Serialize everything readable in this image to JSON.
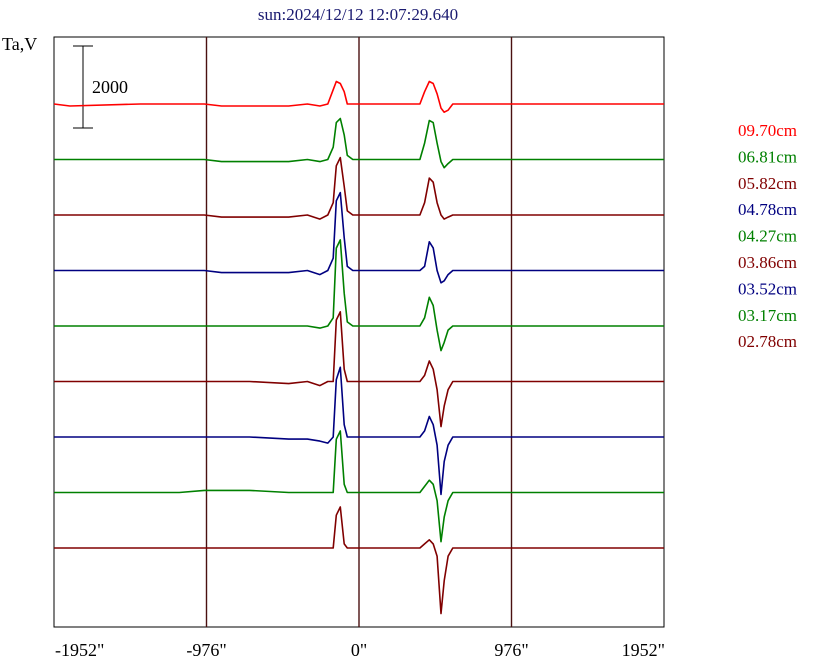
{
  "chart_data": {
    "type": "line",
    "title": "sun:2024/12/12 12:07:29.640",
    "ylabel": "Ta,V",
    "scale_bar_label": "2000",
    "scale_bar_value": 2000,
    "xlim": [
      -1952,
      1952
    ],
    "x_ticks": [
      {
        "value": -1952,
        "label": "-1952\""
      },
      {
        "value": -976,
        "label": "-976\""
      },
      {
        "value": 0,
        "label": "0\""
      },
      {
        "value": 976,
        "label": "976\""
      },
      {
        "value": 1952,
        "label": "1952\""
      }
    ],
    "vertical_guides": [
      -976,
      0,
      976
    ],
    "grid": false,
    "legend_placement": "right",
    "x": [
      -1952,
      -1850,
      -1400,
      -1150,
      -990,
      -880,
      -700,
      -450,
      -330,
      -250,
      -200,
      -165,
      -145,
      -120,
      -95,
      -75,
      -40,
      0,
      150,
      300,
      390,
      420,
      450,
      475,
      500,
      525,
      545,
      570,
      600,
      650,
      700,
      780,
      860,
      990,
      1400,
      1952
    ],
    "series": [
      {
        "name": "09.70cm",
        "color": "#ff0000",
        "offset": 0,
        "values": [
          0,
          -50,
          0,
          0,
          0,
          -50,
          -50,
          -50,
          0,
          -50,
          0,
          350,
          550,
          500,
          300,
          0,
          0,
          0,
          0,
          0,
          0,
          300,
          550,
          500,
          250,
          -100,
          -200,
          -150,
          0,
          0,
          0,
          0,
          0,
          0,
          0,
          0
        ]
      },
      {
        "name": "06.81cm",
        "color": "#008000",
        "offset": 0,
        "values": [
          0,
          0,
          0,
          0,
          0,
          -50,
          -50,
          -50,
          0,
          -50,
          0,
          300,
          900,
          1000,
          600,
          100,
          0,
          0,
          0,
          0,
          0,
          400,
          950,
          900,
          400,
          -50,
          -200,
          -100,
          0,
          0,
          0,
          0,
          0,
          0,
          0,
          0
        ]
      },
      {
        "name": "05.82cm",
        "color": "#800000",
        "offset": 0,
        "values": [
          0,
          0,
          0,
          0,
          0,
          -50,
          -50,
          -50,
          0,
          -100,
          0,
          300,
          1200,
          1400,
          700,
          100,
          0,
          0,
          0,
          0,
          0,
          300,
          900,
          800,
          300,
          0,
          -100,
          -50,
          0,
          0,
          0,
          0,
          0,
          0,
          0,
          0
        ]
      },
      {
        "name": "04.78cm",
        "color": "#000080",
        "offset": 0,
        "values": [
          0,
          0,
          0,
          0,
          0,
          -50,
          -50,
          -50,
          0,
          -100,
          0,
          300,
          1700,
          1900,
          800,
          100,
          0,
          0,
          0,
          0,
          0,
          100,
          700,
          550,
          0,
          -300,
          -250,
          -100,
          0,
          0,
          0,
          0,
          0,
          0,
          0,
          0
        ]
      },
      {
        "name": "04.27cm",
        "color": "#008000",
        "offset": 0,
        "values": [
          0,
          0,
          0,
          0,
          0,
          0,
          0,
          0,
          0,
          -50,
          0,
          200,
          1900,
          2100,
          800,
          100,
          0,
          0,
          0,
          0,
          0,
          200,
          700,
          500,
          -100,
          -600,
          -400,
          -100,
          0,
          0,
          0,
          0,
          0,
          0,
          0,
          0
        ]
      },
      {
        "name": "03.86cm",
        "color": "#800000",
        "offset": 0,
        "values": [
          0,
          0,
          0,
          0,
          0,
          0,
          0,
          -50,
          0,
          -100,
          0,
          0,
          1500,
          1700,
          300,
          0,
          0,
          0,
          0,
          0,
          0,
          150,
          500,
          300,
          -200,
          -1100,
          -600,
          -200,
          0,
          0,
          0,
          0,
          0,
          0,
          0,
          0
        ]
      },
      {
        "name": "03.52cm",
        "color": "#000080",
        "offset": 0,
        "values": [
          0,
          0,
          0,
          0,
          0,
          0,
          0,
          -50,
          -50,
          -100,
          -150,
          0,
          1400,
          1700,
          300,
          0,
          0,
          0,
          0,
          0,
          0,
          150,
          500,
          300,
          -200,
          -1400,
          -600,
          -200,
          0,
          0,
          0,
          0,
          0,
          0,
          0,
          0
        ]
      },
      {
        "name": "03.17cm",
        "color": "#008000",
        "offset": 0,
        "values": [
          0,
          0,
          0,
          0,
          50,
          50,
          50,
          0,
          0,
          0,
          0,
          0,
          1300,
          1500,
          200,
          0,
          0,
          0,
          0,
          0,
          0,
          150,
          300,
          200,
          -200,
          -1200,
          -600,
          -200,
          0,
          0,
          0,
          0,
          0,
          0,
          0,
          0
        ]
      },
      {
        "name": "02.78cm",
        "color": "#800000",
        "offset": 0,
        "values": [
          0,
          0,
          0,
          0,
          0,
          0,
          0,
          0,
          0,
          0,
          0,
          0,
          800,
          1000,
          100,
          0,
          0,
          0,
          0,
          0,
          0,
          100,
          200,
          100,
          -200,
          -1600,
          -800,
          -200,
          0,
          0,
          0,
          0,
          0,
          0,
          0,
          0
        ]
      }
    ]
  }
}
